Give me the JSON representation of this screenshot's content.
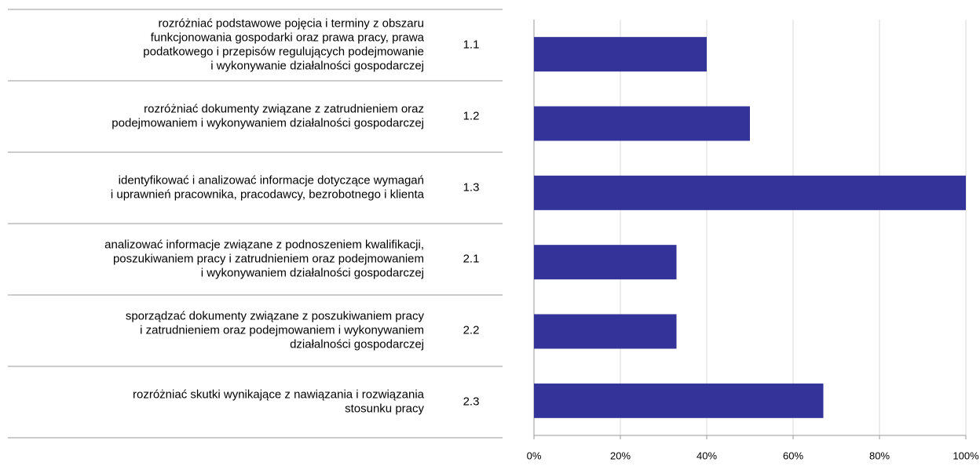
{
  "chart_data": {
    "type": "bar",
    "orientation": "horizontal",
    "categories": [
      "1.1",
      "1.2",
      "1.3",
      "2.1",
      "2.2",
      "2.3"
    ],
    "descriptions": [
      [
        "rozróżniać podstawowe pojęcia i terminy z obszaru",
        "funkcjonowania gospodarki oraz prawa pracy, prawa",
        "podatkowego i przepisów regulujących podejmowanie",
        "i wykonywanie działalności gospodarczej"
      ],
      [
        "rozróżniać dokumenty związane z zatrudnieniem oraz",
        "podejmowaniem i wykonywaniem działalności gospodarczej"
      ],
      [
        "identyfikować i analizować informacje dotyczące wymagań",
        "i uprawnień pracownika, pracodawcy, bezrobotnego i klienta"
      ],
      [
        "analizować informacje związane z podnoszeniem kwalifikacji,",
        "poszukiwaniem pracy i zatrudnieniem oraz podejmowaniem",
        "i wykonywaniem działalności gospodarczej"
      ],
      [
        "sporządzać dokumenty związane z poszukiwaniem pracy",
        "i zatrudnieniem oraz podejmowaniem i wykonywaniem",
        "działalności gospodarczej"
      ],
      [
        "rozróżniać skutki wynikające z nawiązania i rozwiązania",
        "stosunku pracy"
      ]
    ],
    "values": [
      40,
      50,
      100,
      33,
      33,
      67
    ],
    "color": "#333399",
    "xlim": [
      0,
      100
    ],
    "xticks": [
      {
        "value": 0,
        "label": "0%"
      },
      {
        "value": 20,
        "label": "20%"
      },
      {
        "value": 40,
        "label": "40%"
      },
      {
        "value": 60,
        "label": "60%"
      },
      {
        "value": 80,
        "label": "80%"
      },
      {
        "value": 100,
        "label": "100%"
      }
    ],
    "grid": true
  }
}
